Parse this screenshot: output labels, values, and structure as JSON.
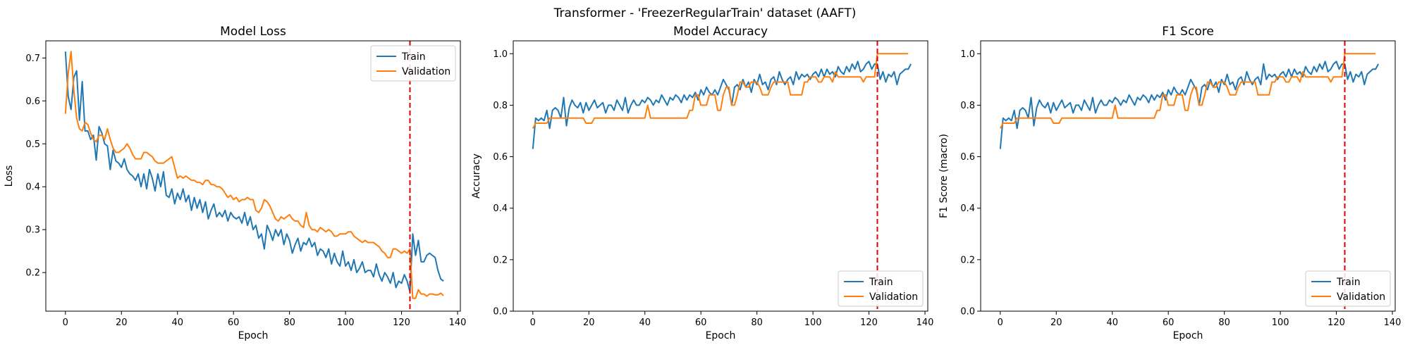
{
  "figure": {
    "suptitle": "Transformer - 'FreezerRegularTrain' dataset (AAFT)"
  },
  "colors": {
    "train": "#1f77b4",
    "validation": "#ff7f0e",
    "vline": "#e00000"
  },
  "chart_data": [
    {
      "type": "line",
      "title": "Model Loss",
      "xlabel": "Epoch",
      "ylabel": "Loss",
      "xlim": [
        -7,
        141
      ],
      "ylim": [
        0.11,
        0.74
      ],
      "xticks": [
        0,
        20,
        40,
        60,
        80,
        100,
        120,
        140
      ],
      "yticks": [
        0.2,
        0.3,
        0.4,
        0.5,
        0.6,
        0.7
      ],
      "yfmt": 1,
      "vline_x": 123,
      "legend_position": "top-right",
      "series": [
        {
          "name": "Train",
          "color_key": "train",
          "values": [
            0.715,
            0.61,
            0.58,
            0.655,
            0.67,
            0.555,
            0.645,
            0.53,
            0.53,
            0.51,
            0.52,
            0.462,
            0.54,
            0.525,
            0.5,
            0.495,
            0.44,
            0.485,
            0.46,
            0.455,
            0.445,
            0.465,
            0.44,
            0.43,
            0.425,
            0.415,
            0.43,
            0.4,
            0.43,
            0.395,
            0.44,
            0.42,
            0.39,
            0.43,
            0.4,
            0.435,
            0.38,
            0.375,
            0.395,
            0.36,
            0.385,
            0.37,
            0.395,
            0.365,
            0.38,
            0.345,
            0.375,
            0.35,
            0.37,
            0.34,
            0.365,
            0.325,
            0.345,
            0.36,
            0.33,
            0.34,
            0.33,
            0.345,
            0.32,
            0.34,
            0.33,
            0.325,
            0.33,
            0.315,
            0.34,
            0.31,
            0.33,
            0.3,
            0.31,
            0.28,
            0.29,
            0.255,
            0.31,
            0.295,
            0.275,
            0.3,
            0.285,
            0.3,
            0.265,
            0.29,
            0.275,
            0.245,
            0.265,
            0.28,
            0.25,
            0.27,
            0.265,
            0.28,
            0.26,
            0.27,
            0.24,
            0.255,
            0.25,
            0.235,
            0.255,
            0.22,
            0.245,
            0.225,
            0.215,
            0.25,
            0.215,
            0.225,
            0.205,
            0.23,
            0.2,
            0.21,
            0.225,
            0.2,
            0.205,
            0.205,
            0.19,
            0.22,
            0.195,
            0.18,
            0.2,
            0.19,
            0.175,
            0.2,
            0.165,
            0.18,
            0.175,
            0.195,
            0.18,
            0.155,
            0.29,
            0.24,
            0.275,
            0.225,
            0.225,
            0.24,
            0.245,
            0.24,
            0.235,
            0.205,
            0.185,
            0.18
          ]
        },
        {
          "name": "Validation",
          "color_key": "validation",
          "values": [
            0.57,
            0.665,
            0.715,
            0.625,
            0.56,
            0.535,
            0.53,
            0.55,
            0.545,
            0.525,
            0.51,
            0.505,
            0.52,
            0.52,
            0.51,
            0.535,
            0.51,
            0.49,
            0.48,
            0.48,
            0.485,
            0.49,
            0.5,
            0.49,
            0.475,
            0.465,
            0.465,
            0.465,
            0.48,
            0.48,
            0.475,
            0.47,
            0.46,
            0.455,
            0.455,
            0.455,
            0.46,
            0.465,
            0.47,
            0.445,
            0.42,
            0.425,
            0.42,
            0.425,
            0.42,
            0.415,
            0.415,
            0.41,
            0.41,
            0.405,
            0.415,
            0.415,
            0.405,
            0.405,
            0.4,
            0.4,
            0.395,
            0.385,
            0.375,
            0.38,
            0.37,
            0.375,
            0.365,
            0.37,
            0.37,
            0.375,
            0.37,
            0.37,
            0.345,
            0.34,
            0.35,
            0.37,
            0.365,
            0.355,
            0.34,
            0.325,
            0.32,
            0.33,
            0.325,
            0.33,
            0.335,
            0.325,
            0.32,
            0.32,
            0.31,
            0.305,
            0.34,
            0.31,
            0.3,
            0.3,
            0.295,
            0.305,
            0.3,
            0.295,
            0.3,
            0.295,
            0.285,
            0.285,
            0.29,
            0.29,
            0.29,
            0.295,
            0.295,
            0.285,
            0.28,
            0.275,
            0.27,
            0.275,
            0.27,
            0.27,
            0.27,
            0.265,
            0.26,
            0.25,
            0.245,
            0.235,
            0.235,
            0.255,
            0.255,
            0.25,
            0.245,
            0.25,
            0.245,
            0.255,
            0.14,
            0.14,
            0.16,
            0.15,
            0.15,
            0.145,
            0.15,
            0.15,
            0.148,
            0.148,
            0.152,
            0.146
          ]
        }
      ]
    },
    {
      "type": "line",
      "title": "Model Accuracy",
      "xlabel": "Epoch",
      "ylabel": "Accuracy",
      "xlim": [
        -7,
        141
      ],
      "ylim": [
        0.0,
        1.05
      ],
      "xticks": [
        0,
        20,
        40,
        60,
        80,
        100,
        120,
        140
      ],
      "yticks": [
        0.0,
        0.2,
        0.4,
        0.6,
        0.8,
        1.0
      ],
      "yfmt": 1,
      "vline_x": 123,
      "legend_position": "bottom-right",
      "series": [
        {
          "name": "Train",
          "color_key": "train",
          "values": [
            0.63,
            0.75,
            0.74,
            0.75,
            0.74,
            0.78,
            0.71,
            0.78,
            0.79,
            0.78,
            0.75,
            0.83,
            0.72,
            0.79,
            0.82,
            0.8,
            0.79,
            0.81,
            0.77,
            0.81,
            0.78,
            0.8,
            0.82,
            0.79,
            0.8,
            0.81,
            0.77,
            0.8,
            0.8,
            0.78,
            0.82,
            0.8,
            0.78,
            0.83,
            0.77,
            0.8,
            0.82,
            0.8,
            0.8,
            0.82,
            0.81,
            0.83,
            0.82,
            0.8,
            0.82,
            0.81,
            0.84,
            0.82,
            0.8,
            0.83,
            0.82,
            0.84,
            0.83,
            0.81,
            0.84,
            0.82,
            0.84,
            0.83,
            0.85,
            0.82,
            0.86,
            0.84,
            0.87,
            0.85,
            0.84,
            0.86,
            0.84,
            0.87,
            0.9,
            0.88,
            0.86,
            0.8,
            0.87,
            0.88,
            0.86,
            0.9,
            0.87,
            0.89,
            0.85,
            0.9,
            0.88,
            0.92,
            0.88,
            0.89,
            0.86,
            0.9,
            0.91,
            0.88,
            0.93,
            0.9,
            0.88,
            0.9,
            0.91,
            0.88,
            0.93,
            0.9,
            0.92,
            0.91,
            0.92,
            0.9,
            0.92,
            0.93,
            0.91,
            0.94,
            0.91,
            0.94,
            0.92,
            0.93,
            0.91,
            0.95,
            0.93,
            0.92,
            0.95,
            0.93,
            0.96,
            0.94,
            0.97,
            0.93,
            0.94,
            0.96,
            0.97,
            0.94,
            0.96,
            0.96,
            0.9,
            0.93,
            0.89,
            0.92,
            0.91,
            0.93,
            0.88,
            0.92,
            0.93,
            0.94,
            0.94,
            0.96
          ]
        },
        {
          "name": "Validation",
          "color_key": "validation",
          "values": [
            0.71,
            0.73,
            0.73,
            0.73,
            0.73,
            0.73,
            0.75,
            0.75,
            0.75,
            0.75,
            0.75,
            0.75,
            0.75,
            0.75,
            0.75,
            0.75,
            0.75,
            0.75,
            0.75,
            0.73,
            0.73,
            0.73,
            0.75,
            0.75,
            0.75,
            0.75,
            0.75,
            0.75,
            0.75,
            0.75,
            0.75,
            0.75,
            0.75,
            0.75,
            0.75,
            0.75,
            0.75,
            0.75,
            0.75,
            0.75,
            0.75,
            0.8,
            0.75,
            0.75,
            0.75,
            0.75,
            0.75,
            0.75,
            0.75,
            0.75,
            0.75,
            0.75,
            0.75,
            0.75,
            0.75,
            0.75,
            0.78,
            0.78,
            0.84,
            0.84,
            0.8,
            0.8,
            0.8,
            0.84,
            0.84,
            0.84,
            0.78,
            0.78,
            0.84,
            0.87,
            0.87,
            0.8,
            0.8,
            0.84,
            0.89,
            0.89,
            0.87,
            0.87,
            0.89,
            0.89,
            0.89,
            0.87,
            0.84,
            0.84,
            0.84,
            0.87,
            0.89,
            0.89,
            0.89,
            0.89,
            0.89,
            0.89,
            0.84,
            0.84,
            0.84,
            0.84,
            0.84,
            0.89,
            0.89,
            0.91,
            0.91,
            0.91,
            0.89,
            0.89,
            0.91,
            0.91,
            0.91,
            0.89,
            0.93,
            0.91,
            0.91,
            0.91,
            0.91,
            0.91,
            0.91,
            0.91,
            0.91,
            0.91,
            0.89,
            0.91,
            0.91,
            0.91,
            0.91,
            1.0,
            1.0,
            1.0,
            1.0,
            1.0,
            1.0,
            1.0,
            1.0,
            1.0,
            1.0,
            1.0,
            1.0
          ]
        }
      ]
    },
    {
      "type": "line",
      "title": "F1 Score",
      "xlabel": "Epoch",
      "ylabel": "F1 Score (macro)",
      "xlim": [
        -7,
        141
      ],
      "ylim": [
        0.0,
        1.05
      ],
      "xticks": [
        0,
        20,
        40,
        60,
        80,
        100,
        120,
        140
      ],
      "yticks": [
        0.0,
        0.2,
        0.4,
        0.6,
        0.8,
        1.0
      ],
      "yfmt": 1,
      "vline_x": 123,
      "legend_position": "bottom-right",
      "series": [
        {
          "name": "Train",
          "color_key": "train",
          "values": [
            0.63,
            0.75,
            0.74,
            0.75,
            0.74,
            0.78,
            0.71,
            0.78,
            0.79,
            0.78,
            0.75,
            0.83,
            0.72,
            0.79,
            0.82,
            0.8,
            0.79,
            0.81,
            0.77,
            0.81,
            0.78,
            0.8,
            0.82,
            0.79,
            0.8,
            0.81,
            0.77,
            0.8,
            0.8,
            0.78,
            0.82,
            0.8,
            0.78,
            0.83,
            0.77,
            0.8,
            0.82,
            0.8,
            0.8,
            0.82,
            0.81,
            0.83,
            0.82,
            0.8,
            0.82,
            0.81,
            0.84,
            0.82,
            0.8,
            0.83,
            0.82,
            0.84,
            0.83,
            0.81,
            0.84,
            0.82,
            0.84,
            0.83,
            0.85,
            0.82,
            0.86,
            0.84,
            0.87,
            0.85,
            0.84,
            0.86,
            0.84,
            0.87,
            0.9,
            0.88,
            0.86,
            0.8,
            0.87,
            0.88,
            0.86,
            0.9,
            0.87,
            0.89,
            0.85,
            0.9,
            0.88,
            0.92,
            0.88,
            0.89,
            0.86,
            0.9,
            0.91,
            0.88,
            0.93,
            0.9,
            0.88,
            0.9,
            0.91,
            0.88,
            0.96,
            0.9,
            0.92,
            0.91,
            0.92,
            0.9,
            0.92,
            0.93,
            0.91,
            0.94,
            0.91,
            0.94,
            0.92,
            0.93,
            0.91,
            0.95,
            0.93,
            0.92,
            0.95,
            0.93,
            0.96,
            0.94,
            0.97,
            0.93,
            0.94,
            0.96,
            0.97,
            0.94,
            0.96,
            0.96,
            0.9,
            0.93,
            0.89,
            0.92,
            0.91,
            0.93,
            0.88,
            0.92,
            0.93,
            0.94,
            0.94,
            0.96
          ]
        },
        {
          "name": "Validation",
          "color_key": "validation",
          "values": [
            0.71,
            0.73,
            0.73,
            0.73,
            0.73,
            0.73,
            0.75,
            0.75,
            0.75,
            0.75,
            0.75,
            0.75,
            0.75,
            0.75,
            0.75,
            0.75,
            0.75,
            0.75,
            0.75,
            0.73,
            0.73,
            0.73,
            0.75,
            0.75,
            0.75,
            0.75,
            0.75,
            0.75,
            0.75,
            0.75,
            0.75,
            0.75,
            0.75,
            0.75,
            0.75,
            0.75,
            0.75,
            0.75,
            0.75,
            0.75,
            0.75,
            0.8,
            0.75,
            0.75,
            0.75,
            0.75,
            0.75,
            0.75,
            0.75,
            0.75,
            0.75,
            0.75,
            0.75,
            0.75,
            0.75,
            0.75,
            0.78,
            0.78,
            0.84,
            0.84,
            0.8,
            0.8,
            0.8,
            0.84,
            0.84,
            0.84,
            0.78,
            0.78,
            0.84,
            0.87,
            0.87,
            0.8,
            0.8,
            0.84,
            0.89,
            0.89,
            0.87,
            0.87,
            0.89,
            0.89,
            0.89,
            0.87,
            0.84,
            0.84,
            0.84,
            0.87,
            0.89,
            0.89,
            0.89,
            0.89,
            0.89,
            0.89,
            0.84,
            0.84,
            0.84,
            0.84,
            0.84,
            0.89,
            0.89,
            0.91,
            0.91,
            0.91,
            0.89,
            0.89,
            0.91,
            0.91,
            0.91,
            0.89,
            0.93,
            0.91,
            0.91,
            0.91,
            0.91,
            0.91,
            0.91,
            0.91,
            0.91,
            0.91,
            0.89,
            0.91,
            0.91,
            0.91,
            0.91,
            1.0,
            1.0,
            1.0,
            1.0,
            1.0,
            1.0,
            1.0,
            1.0,
            1.0,
            1.0,
            1.0,
            1.0
          ]
        }
      ]
    }
  ]
}
